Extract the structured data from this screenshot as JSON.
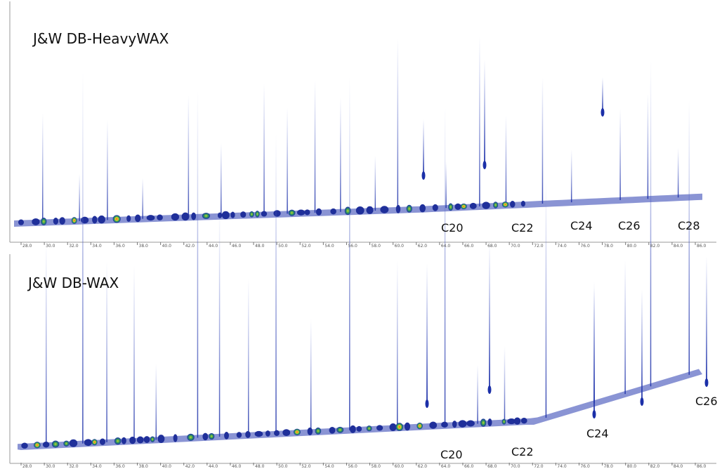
{
  "panels": [
    {
      "title": "J&W DB-HeavyWAX",
      "labels": [
        "C20",
        "C22",
        "C24",
        "C26",
        "C28"
      ]
    },
    {
      "title": "J&W DB-WAX",
      "labels": [
        "C20",
        "C22",
        "C24",
        "C26"
      ]
    }
  ],
  "x_axis": {
    "ticks": [
      "28.0",
      "30.0",
      "32.0",
      "34.0",
      "36.0",
      "38.0",
      "40.0",
      "42.0",
      "44.0",
      "46.0",
      "48.0",
      "50.0",
      "52.0",
      "54.0",
      "56.0",
      "58.0",
      "60.0",
      "62.0",
      "64.0",
      "66.0",
      "68.0",
      "70.0",
      "72.0",
      "74.0",
      "76.0",
      "78.0",
      "80.0",
      "82.0",
      "84.0",
      "86.0"
    ]
  }
}
